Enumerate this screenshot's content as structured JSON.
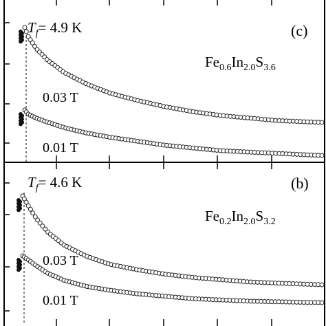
{
  "chart_data": [
    {
      "type": "scatter",
      "panel_label": "(c)",
      "tf_annotation": "= 4.9 K",
      "tf_symbol": "T",
      "tf_subscript": "f",
      "compound": {
        "base": [
          "Fe",
          "In",
          "S"
        ],
        "subs": [
          "0.6",
          "2.0",
          "3.6"
        ]
      },
      "series": [
        {
          "name": "0.03 T",
          "x": [
            4.9,
            5.5,
            7,
            9,
            12,
            16,
            20,
            25,
            30,
            35,
            40,
            45,
            50,
            55,
            58
          ],
          "y": [
            1.0,
            0.93,
            0.83,
            0.74,
            0.64,
            0.55,
            0.48,
            0.42,
            0.37,
            0.33,
            0.3,
            0.28,
            0.26,
            0.25,
            0.245
          ]
        },
        {
          "name": "0.01 T",
          "x": [
            4.9,
            5.5,
            7,
            9,
            12,
            16,
            20,
            25,
            30,
            35,
            40,
            45,
            50,
            55,
            58
          ],
          "y": [
            0.52,
            0.49,
            0.46,
            0.43,
            0.39,
            0.35,
            0.32,
            0.29,
            0.26,
            0.24,
            0.22,
            0.21,
            0.2,
            0.19,
            0.185
          ]
        }
      ]
    },
    {
      "type": "scatter",
      "panel_label": "(b)",
      "tf_annotation": "= 4.6 K",
      "tf_symbol": "T",
      "tf_subscript": "f",
      "compound": {
        "base": [
          "Fe",
          "In",
          "S"
        ],
        "subs": [
          "0.2",
          "2.0",
          "3.2"
        ]
      },
      "series": [
        {
          "name": "0.03 T",
          "x": [
            4.6,
            5.5,
            7,
            9,
            12,
            16,
            20,
            25,
            30,
            35,
            40,
            45,
            50,
            55,
            58
          ],
          "y": [
            1.0,
            0.92,
            0.8,
            0.68,
            0.56,
            0.46,
            0.39,
            0.34,
            0.3,
            0.27,
            0.25,
            0.23,
            0.22,
            0.21,
            0.205
          ]
        },
        {
          "name": "0.01 T",
          "x": [
            4.6,
            5.5,
            7,
            9,
            12,
            16,
            20,
            25,
            30,
            35,
            40,
            45,
            50,
            55,
            58
          ],
          "y": [
            0.55,
            0.52,
            0.47,
            0.41,
            0.35,
            0.3,
            0.27,
            0.24,
            0.22,
            0.2,
            0.19,
            0.18,
            0.175,
            0.17,
            0.168
          ]
        }
      ]
    }
  ]
}
